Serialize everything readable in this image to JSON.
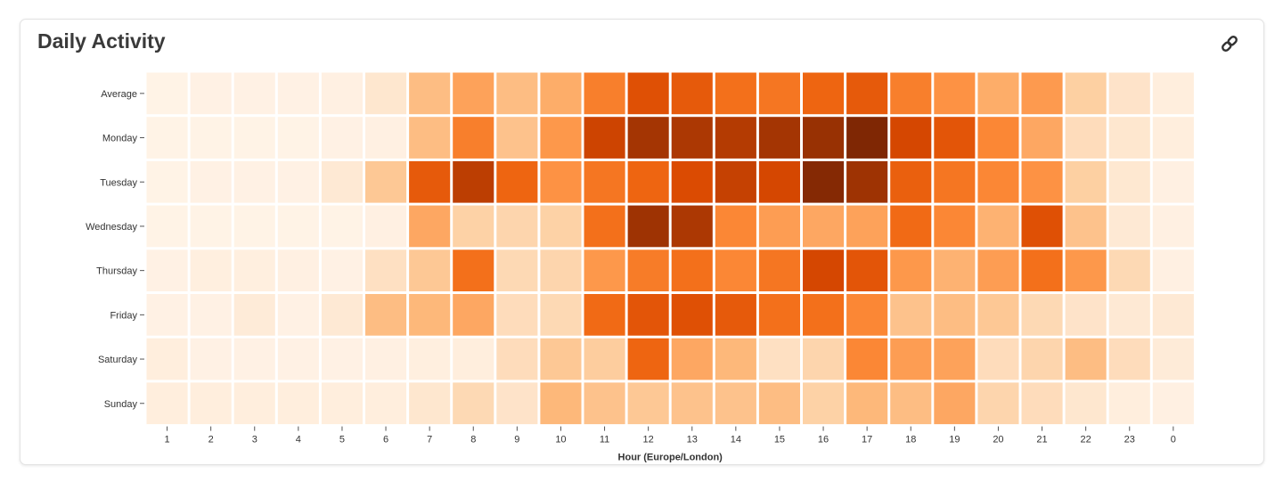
{
  "card": {
    "title": "Daily Activity",
    "link_icon": "link-icon"
  },
  "colors": {
    "scale": [
      "#fff5eb",
      "#fee6ce",
      "#fdd0a2",
      "#fdae6b",
      "#fd8d3c",
      "#f16913",
      "#d94801",
      "#a63603",
      "#7f2704"
    ],
    "cell_gap": "#ffffff"
  },
  "chart_data": {
    "type": "heatmap",
    "title": "",
    "xlabel": "Hour (Europe/London)",
    "ylabel": "",
    "x": [
      "1",
      "2",
      "3",
      "4",
      "5",
      "6",
      "7",
      "8",
      "9",
      "10",
      "11",
      "12",
      "13",
      "14",
      "15",
      "16",
      "17",
      "18",
      "19",
      "20",
      "21",
      "22",
      "23",
      "0"
    ],
    "y": [
      "Average",
      "Monday",
      "Tuesday",
      "Wednesday",
      "Thursday",
      "Friday",
      "Saturday",
      "Sunday"
    ],
    "color_scale": "oranges (light = low, dark = high)",
    "values": [
      [
        2,
        3,
        3,
        3,
        4,
        12,
        32,
        42,
        32,
        38,
        55,
        72,
        68,
        60,
        58,
        64,
        68,
        55,
        48,
        38,
        45,
        25,
        14,
        6
      ],
      [
        2,
        2,
        2,
        2,
        3,
        4,
        32,
        55,
        30,
        46,
        78,
        88,
        86,
        84,
        88,
        92,
        100,
        76,
        70,
        52,
        40,
        18,
        12,
        6
      ],
      [
        2,
        3,
        3,
        3,
        10,
        28,
        68,
        82,
        64,
        48,
        58,
        64,
        74,
        80,
        76,
        98,
        90,
        66,
        58,
        52,
        48,
        25,
        11,
        4
      ],
      [
        2,
        2,
        2,
        2,
        2,
        4,
        40,
        24,
        22,
        24,
        60,
        90,
        86,
        52,
        44,
        40,
        42,
        62,
        52,
        36,
        72,
        30,
        10,
        4
      ],
      [
        3,
        5,
        5,
        4,
        3,
        16,
        28,
        60,
        20,
        22,
        46,
        56,
        60,
        52,
        58,
        76,
        70,
        46,
        36,
        44,
        60,
        46,
        20,
        4
      ],
      [
        3,
        3,
        8,
        3,
        10,
        32,
        34,
        40,
        18,
        20,
        62,
        70,
        72,
        68,
        60,
        60,
        52,
        30,
        32,
        28,
        20,
        14,
        10,
        10
      ],
      [
        6,
        3,
        3,
        3,
        3,
        4,
        5,
        6,
        18,
        28,
        26,
        64,
        40,
        34,
        16,
        22,
        52,
        44,
        42,
        18,
        22,
        32,
        18,
        8
      ],
      [
        6,
        6,
        6,
        6,
        6,
        6,
        12,
        20,
        14,
        34,
        30,
        28,
        30,
        30,
        32,
        24,
        34,
        32,
        40,
        22,
        18,
        12,
        6,
        4
      ]
    ]
  }
}
